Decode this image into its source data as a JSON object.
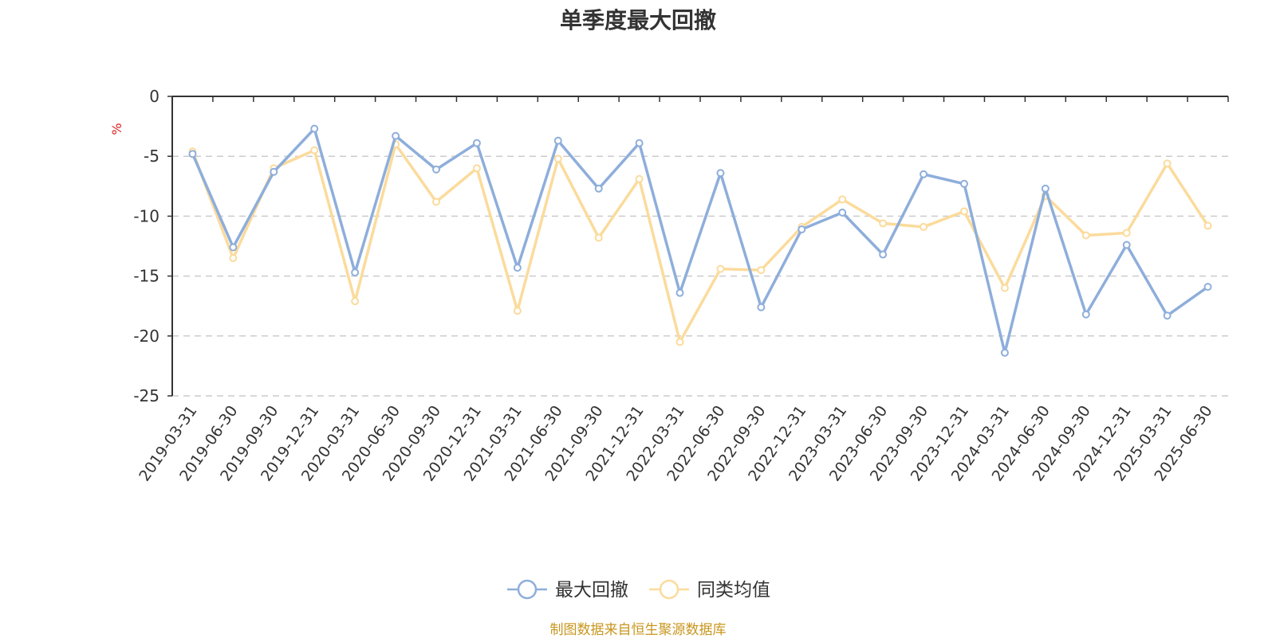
{
  "chart_data": {
    "type": "line",
    "title": "单季度最大回撤",
    "ylabel": "%",
    "ylim": [
      -25,
      0
    ],
    "yticks": [
      0,
      -5,
      -10,
      -15,
      -20,
      -25
    ],
    "grid": true,
    "legend_position": "bottom-center",
    "categories": [
      "2019-03-31",
      "2019-06-30",
      "2019-09-30",
      "2019-12-31",
      "2020-03-31",
      "2020-06-30",
      "2020-09-30",
      "2020-12-31",
      "2021-03-31",
      "2021-06-30",
      "2021-09-30",
      "2021-12-31",
      "2022-03-31",
      "2022-06-30",
      "2022-09-30",
      "2022-12-31",
      "2023-03-31",
      "2023-06-30",
      "2023-09-30",
      "2023-12-31",
      "2024-03-31",
      "2024-06-30",
      "2024-09-30",
      "2024-12-31",
      "2025-03-31",
      "2025-06-30"
    ],
    "series": [
      {
        "name": "最大回撤",
        "color": "#8eaedb",
        "values": [
          -4.8,
          -12.6,
          -6.3,
          -2.7,
          -14.7,
          -3.3,
          -6.1,
          -3.9,
          -14.3,
          -3.7,
          -7.7,
          -3.9,
          -16.4,
          -6.4,
          -17.6,
          -11.1,
          -9.7,
          -13.2,
          -6.5,
          -7.3,
          -21.4,
          -7.7,
          -18.2,
          -12.4,
          -18.3,
          -15.9
        ]
      },
      {
        "name": "同类均值",
        "color": "#fbdb9c",
        "values": [
          -4.6,
          -13.5,
          -6.0,
          -4.5,
          -17.1,
          -4.0,
          -8.8,
          -6.0,
          -17.9,
          -5.2,
          -11.8,
          -6.9,
          -20.5,
          -14.4,
          -14.5,
          -10.9,
          -8.6,
          -10.6,
          -10.9,
          -9.6,
          -16.0,
          -8.3,
          -11.6,
          -11.4,
          -5.6,
          -10.8
        ]
      }
    ]
  },
  "source_note": "制图数据来自恒生聚源数据库"
}
